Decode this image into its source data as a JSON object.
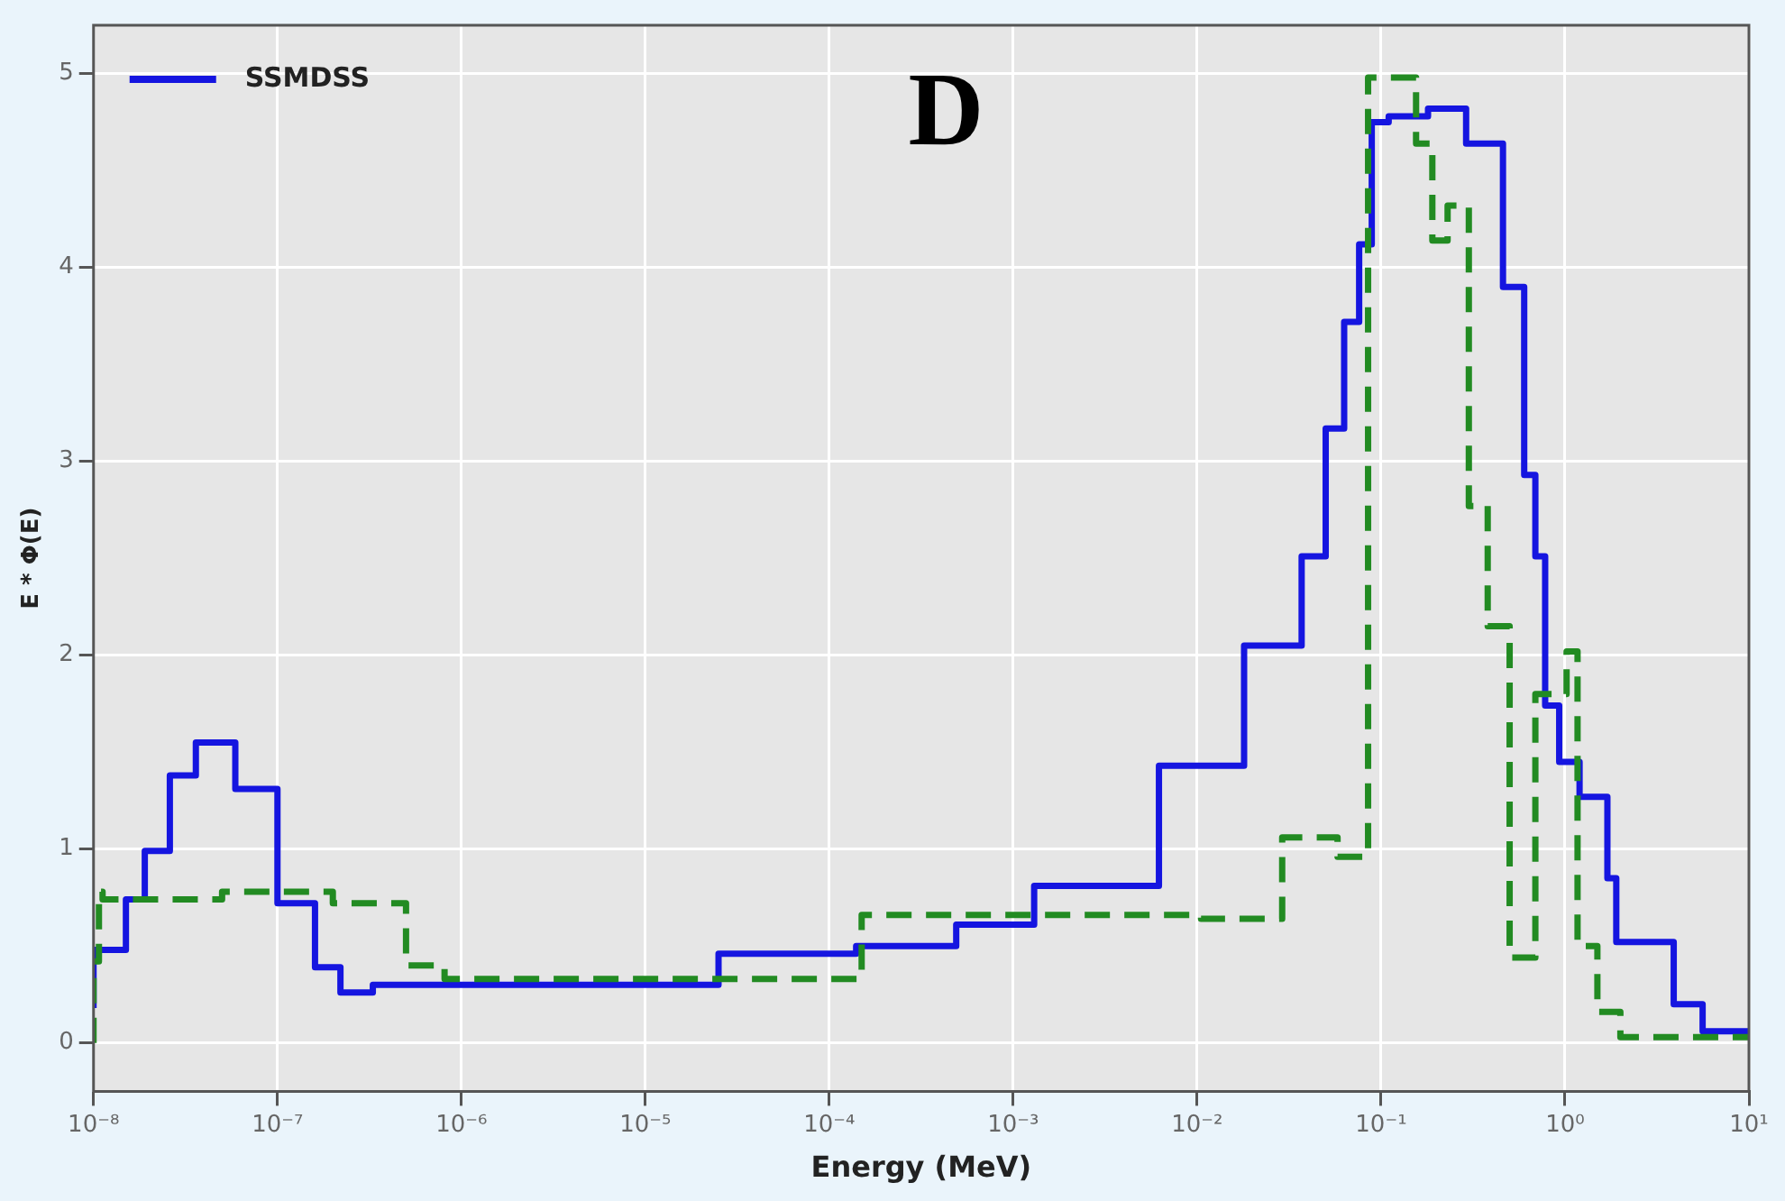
{
  "chart_data": {
    "type": "step",
    "xlabel": "Energy (MeV)",
    "ylabel": "E * Φ(E)",
    "annotations": [
      "D"
    ],
    "log": "x",
    "xlim": [
      1e-08,
      10
    ],
    "ylim": [
      -0.25,
      5.25
    ],
    "xticks": [
      {
        "value": 1e-08,
        "label": "10⁻⁸"
      },
      {
        "value": 1e-07,
        "label": "10⁻⁷"
      },
      {
        "value": 1e-06,
        "label": "10⁻⁶"
      },
      {
        "value": 1e-05,
        "label": "10⁻⁵"
      },
      {
        "value": 0.0001,
        "label": "10⁻⁴"
      },
      {
        "value": 0.001,
        "label": "10⁻³"
      },
      {
        "value": 0.01,
        "label": "10⁻²"
      },
      {
        "value": 0.1,
        "label": "10⁻¹"
      },
      {
        "value": 1,
        "label": "10⁰"
      },
      {
        "value": 10,
        "label": "10¹"
      }
    ],
    "yticks": [
      0,
      1,
      2,
      3,
      4,
      5
    ],
    "grid": true,
    "legend": "top left",
    "series": [
      {
        "color": "#228b22",
        "line_style": "dashed",
        "x": [
          1e-08,
          1.07e-08,
          1.12e-08,
          5e-08,
          2e-07,
          5e-07,
          8.1e-07,
          0.00015,
          0.0105,
          0.029,
          0.058,
          0.085,
          0.155,
          0.19,
          0.23,
          0.3,
          0.38,
          0.5,
          0.69,
          1.02,
          1.17,
          1.5,
          2,
          4,
          10
        ],
        "values": [
          0,
          0.42,
          0.78,
          0.74,
          0.78,
          0.72,
          0.4,
          0.33,
          0.66,
          0.64,
          1.06,
          0.96,
          4.98,
          4.64,
          4.14,
          4.32,
          2.77,
          2.15,
          0.44,
          1.8,
          2.02,
          0.5,
          0.16,
          0.03,
          0.03
        ]
      },
      {
        "name": "SSMDSS",
        "color": "#1515e0",
        "line_style": "solid",
        "x": [
          1e-08,
          1.5e-08,
          1.9e-08,
          2.6e-08,
          3.6e-08,
          5.9e-08,
          1e-07,
          1.6e-07,
          2.2e-07,
          3.3e-07,
          2.5e-05,
          0.00014,
          0.00049,
          0.0013,
          0.0062,
          0.018,
          0.037,
          0.05,
          0.063,
          0.076,
          0.089,
          0.11,
          0.18,
          0.29,
          0.46,
          0.6,
          0.69,
          0.78,
          0.93,
          1.2,
          1.7,
          1.9,
          3.9,
          5.6,
          8.1,
          10
        ],
        "values": [
          0.18,
          0.48,
          0.74,
          0.99,
          1.38,
          1.55,
          1.31,
          0.72,
          0.39,
          0.26,
          0.3,
          0.46,
          0.5,
          0.61,
          0.81,
          1.43,
          2.05,
          2.51,
          3.17,
          3.72,
          4.12,
          4.75,
          4.78,
          4.82,
          4.64,
          3.9,
          2.93,
          2.51,
          1.74,
          1.45,
          1.27,
          0.85,
          0.52,
          0.2,
          0.06,
          0.06
        ]
      }
    ]
  }
}
